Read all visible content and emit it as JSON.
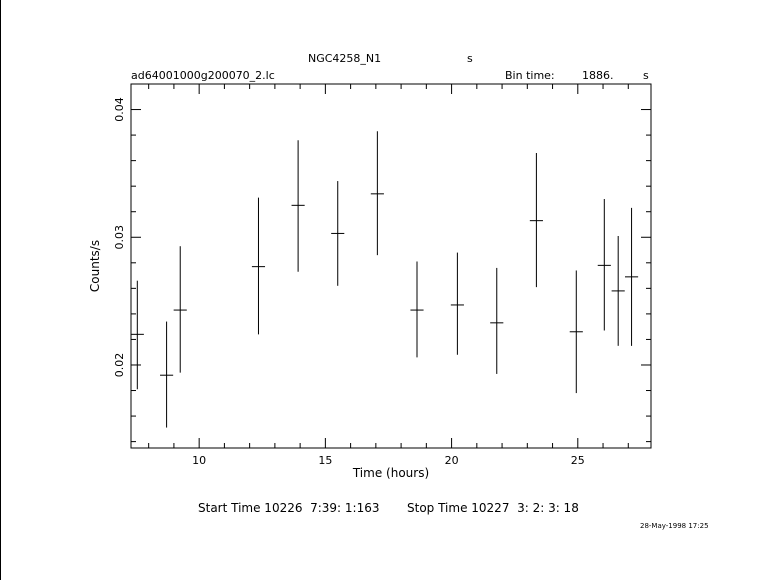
{
  "header": {
    "object": "NGC4258_N1",
    "object_unit": "s",
    "file": "ad64001000g200070_2.lc",
    "bin_label": "Bin time:",
    "bin_value": "1886.",
    "bin_unit": "s"
  },
  "footer": {
    "start": "Start Time 10226  7:39: 1:163",
    "stop": "Stop Time 10227  3: 2: 3: 18",
    "date": "28-May-1998 17:25"
  },
  "chart_data": {
    "type": "scatter",
    "xlabel": "Time (hours)",
    "ylabel": "Counts/s",
    "xlim": [
      7.3,
      27.9
    ],
    "ylim": [
      0.0135,
      0.042
    ],
    "x_ticks": [
      10,
      15,
      20,
      25
    ],
    "x_tick_labels": [
      "10",
      "15",
      "20",
      "25"
    ],
    "y_ticks": [
      0.02,
      0.03,
      0.04
    ],
    "y_tick_labels": [
      "0.02",
      "0.03",
      "0.04"
    ],
    "x_minor_step": 1,
    "y_minor_step": 0.002,
    "grid": false,
    "points": [
      {
        "x": 7.55,
        "xerr": 0.26,
        "y": 0.0224,
        "ylo": 0.0181,
        "yhi": 0.0266
      },
      {
        "x": 8.71,
        "xerr": 0.26,
        "y": 0.0192,
        "ylo": 0.0151,
        "yhi": 0.0234
      },
      {
        "x": 9.25,
        "xerr": 0.26,
        "y": 0.0243,
        "ylo": 0.0194,
        "yhi": 0.0293
      },
      {
        "x": 12.35,
        "xerr": 0.26,
        "y": 0.0277,
        "ylo": 0.0224,
        "yhi": 0.0331
      },
      {
        "x": 13.92,
        "xerr": 0.26,
        "y": 0.0325,
        "ylo": 0.0273,
        "yhi": 0.0376
      },
      {
        "x": 15.49,
        "xerr": 0.26,
        "y": 0.0303,
        "ylo": 0.0262,
        "yhi": 0.0344
      },
      {
        "x": 17.06,
        "xerr": 0.26,
        "y": 0.0334,
        "ylo": 0.0286,
        "yhi": 0.0383
      },
      {
        "x": 18.63,
        "xerr": 0.26,
        "y": 0.0243,
        "ylo": 0.0206,
        "yhi": 0.0281
      },
      {
        "x": 20.23,
        "xerr": 0.26,
        "y": 0.0247,
        "ylo": 0.0208,
        "yhi": 0.0288
      },
      {
        "x": 21.79,
        "xerr": 0.26,
        "y": 0.0233,
        "ylo": 0.0193,
        "yhi": 0.0276
      },
      {
        "x": 23.36,
        "xerr": 0.26,
        "y": 0.0313,
        "ylo": 0.0261,
        "yhi": 0.0366
      },
      {
        "x": 24.94,
        "xerr": 0.26,
        "y": 0.0226,
        "ylo": 0.0178,
        "yhi": 0.0274
      },
      {
        "x": 26.05,
        "xerr": 0.26,
        "y": 0.0278,
        "ylo": 0.0227,
        "yhi": 0.033
      },
      {
        "x": 26.6,
        "xerr": 0.26,
        "y": 0.0258,
        "ylo": 0.0215,
        "yhi": 0.0301
      },
      {
        "x": 27.13,
        "xerr": 0.26,
        "y": 0.0269,
        "ylo": 0.0215,
        "yhi": 0.0323
      }
    ]
  }
}
